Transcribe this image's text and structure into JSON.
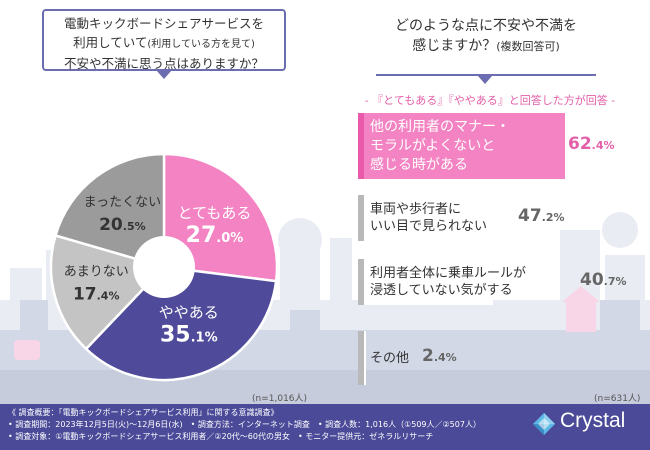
{
  "left_question": {
    "line1": "電動キックボードシェアサービスを",
    "line2": "利用していて",
    "line2_note": "(利用している方を見て)",
    "line3": "不安や不満に思う点はありますか？"
  },
  "right_question": {
    "line1": "どのような点に不安や不満を",
    "line2": "感じますか？",
    "line2_note": "(複数回答可)"
  },
  "right_subnote": "- 『とてもある』『ややある』と回答した方が回答 -",
  "left_n": "(n=1,016人)",
  "right_n": "(n=631人)",
  "colors": {
    "pink": "#f383c2",
    "purple": "#4f4a9a",
    "gray_dark": "#9b9b9b",
    "gray_light": "#c4c4c4",
    "accent_text": "#e35fa8",
    "footer_bg": "#4a4a98"
  },
  "chart_data": [
    {
      "type": "pie",
      "title": "電動キックボードシェアサービスを利用していて(利用している方を見て)不安や不満に思う点はありますか？",
      "slices": [
        {
          "label": "とてもある",
          "value": 27.0,
          "int": "27",
          "dec": ".0%",
          "color": "#f383c2",
          "text_color": "#ffffff"
        },
        {
          "label": "ややある",
          "value": 35.1,
          "int": "35",
          "dec": ".1%",
          "color": "#4f4a9a",
          "text_color": "#ffffff"
        },
        {
          "label": "あまりない",
          "value": 17.4,
          "int": "17",
          "dec": ".4%",
          "color": "#c4c4c4",
          "text_color": "#333333"
        },
        {
          "label": "まったくない",
          "value": 20.5,
          "int": "20",
          "dec": ".5%",
          "color": "#9b9b9b",
          "text_color": "#333333"
        }
      ],
      "n": "n=1,016人"
    },
    {
      "type": "bar",
      "orientation": "horizontal",
      "title": "どのような点に不安や不満を感じますか？(複数回答可)",
      "categories": [
        "他の利用者のマナー・モラルがよくないと感じる時がある",
        "車両や歩行者にいい目で見られない",
        "利用者全体に乗車ルールが浸透していない気がする",
        "その他"
      ],
      "values": [
        62.4,
        47.2,
        40.7,
        2.4
      ],
      "bars": [
        {
          "lines": [
            "他の利用者のマナー・",
            "モラルがよくないと",
            "感じる時がある"
          ],
          "int": "62",
          "dec": ".4%"
        },
        {
          "lines": [
            "車両や歩行者に",
            "いい目で見られない"
          ],
          "int": "47",
          "dec": ".2%"
        },
        {
          "lines": [
            "利用者全体に乗車ルールが",
            "浸透していない気がする"
          ],
          "int": "40",
          "dec": ".7%"
        },
        {
          "lines": [
            "その他"
          ],
          "int": "2",
          "dec": ".4%"
        }
      ],
      "xlim": [
        0,
        100
      ],
      "n": "n=631人"
    }
  ],
  "footer": {
    "line1": "《 調査概要：「電動キックボードシェアサービス利用」に関する意識調査》",
    "line2": "• 調査期間：2023年12月5日(火)〜12月6日(水)　• 調査方法：インターネット調査　• 調査人数：1,016人（①509人／②507人）",
    "line3": "• 調査対象：①電動キックボードシェアサービス利用者／②20代〜60代の男女　• モニター提供元：ゼネラルリサーチ",
    "brand": "Crystal"
  }
}
